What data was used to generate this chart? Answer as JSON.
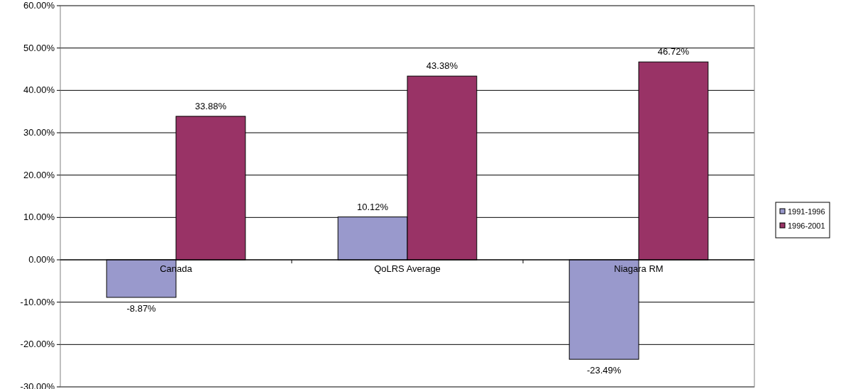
{
  "chart_data": {
    "type": "bar",
    "categories": [
      "Canada",
      "QoLRS Average",
      "Niagara RM"
    ],
    "series": [
      {
        "name": "1991-1996",
        "color": "#9999cc",
        "values": [
          -8.87,
          10.12,
          -23.49
        ],
        "value_labels": [
          "-8.87%",
          "10.12%",
          "-23.49%"
        ]
      },
      {
        "name": "1996-2001",
        "color": "#993366",
        "values": [
          33.88,
          43.38,
          46.72
        ],
        "value_labels": [
          "33.88%",
          "43.38%",
          "46.72%"
        ]
      }
    ],
    "ylim": [
      -30,
      60
    ],
    "yticks": [
      {
        "value": -30,
        "label": "-30.00%"
      },
      {
        "value": -20,
        "label": "-20.00%"
      },
      {
        "value": -10,
        "label": "-10.00%"
      },
      {
        "value": 0,
        "label": "0.00%"
      },
      {
        "value": 10,
        "label": "10.00%"
      },
      {
        "value": 20,
        "label": "20.00%"
      },
      {
        "value": 30,
        "label": "30.00%"
      },
      {
        "value": 40,
        "label": "40.00%"
      },
      {
        "value": 50,
        "label": "50.00%"
      },
      {
        "value": 60,
        "label": "60.00%"
      }
    ],
    "grid": "y",
    "legend": "right"
  }
}
